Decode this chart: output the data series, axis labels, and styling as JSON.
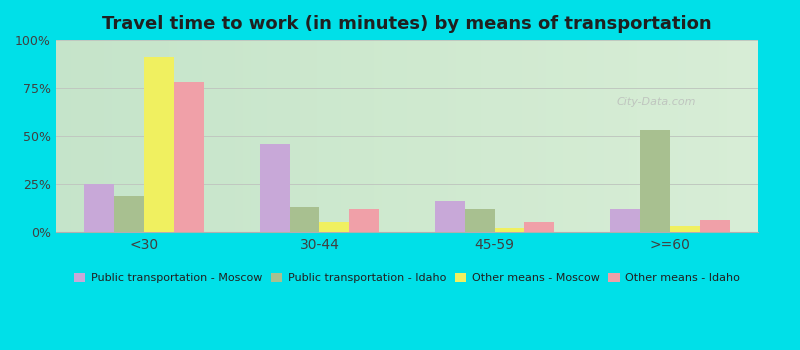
{
  "title": "Travel time to work (in minutes) by means of transportation",
  "categories": [
    "<30",
    "30-44",
    "45-59",
    ">=60"
  ],
  "series": {
    "Public transportation - Moscow": [
      25,
      46,
      16,
      12
    ],
    "Public transportation - Idaho": [
      19,
      13,
      12,
      53
    ],
    "Other means - Moscow": [
      91,
      5,
      2,
      3
    ],
    "Other means - Idaho": [
      78,
      12,
      5,
      6
    ]
  },
  "colors": {
    "Public transportation - Moscow": "#c8a8d8",
    "Public transportation - Idaho": "#a8c090",
    "Other means - Moscow": "#f0f060",
    "Other means - Idaho": "#f0a0a8"
  },
  "ylim": [
    0,
    100
  ],
  "yticks": [
    0,
    25,
    50,
    75,
    100
  ],
  "ytick_labels": [
    "0%",
    "25%",
    "50%",
    "75%",
    "100%"
  ],
  "background_color": "#00e0e8",
  "plot_bg_top": "#e8f5e0",
  "plot_bg_bottom": "#f0f8ee",
  "title_fontsize": 13,
  "bar_width": 0.17,
  "legend_fontsize": 8
}
